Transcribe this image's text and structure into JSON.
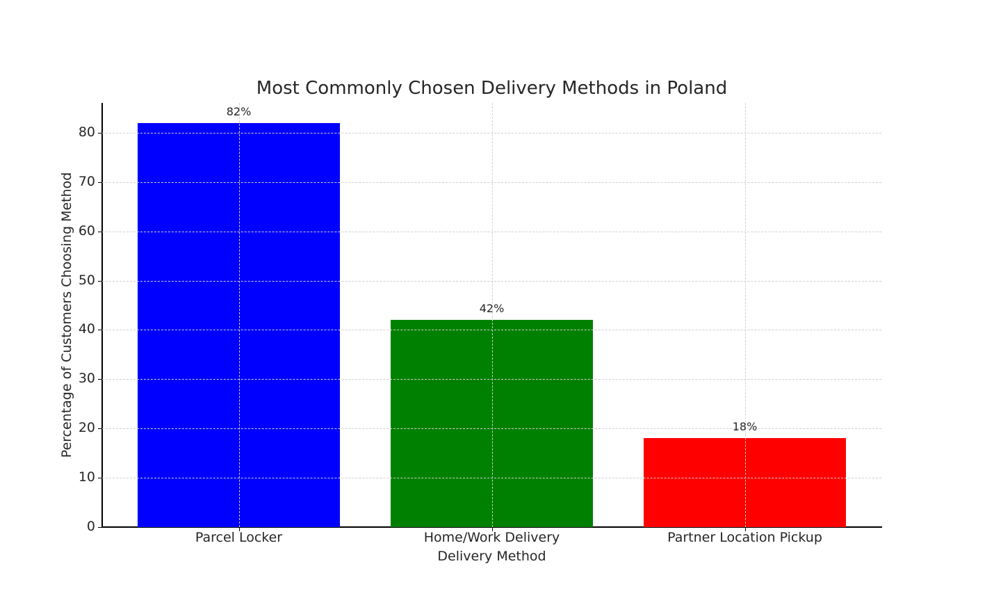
{
  "chart_data": {
    "type": "bar",
    "title": "Most Commonly Chosen Delivery Methods in Poland",
    "xlabel": "Delivery Method",
    "ylabel": "Percentage of Customers Choosing Method",
    "categories": [
      "Parcel Locker",
      "Home/Work Delivery",
      "Partner Location Pickup"
    ],
    "values": [
      82,
      42,
      18
    ],
    "value_labels": [
      "82%",
      "42%",
      "18%"
    ],
    "colors": [
      "#0000ff",
      "#008000",
      "#ff0000"
    ],
    "ylim": [
      0,
      86
    ],
    "yticks": [
      0,
      10,
      20,
      30,
      40,
      50,
      60,
      70,
      80
    ],
    "grid": true,
    "legend": null
  }
}
